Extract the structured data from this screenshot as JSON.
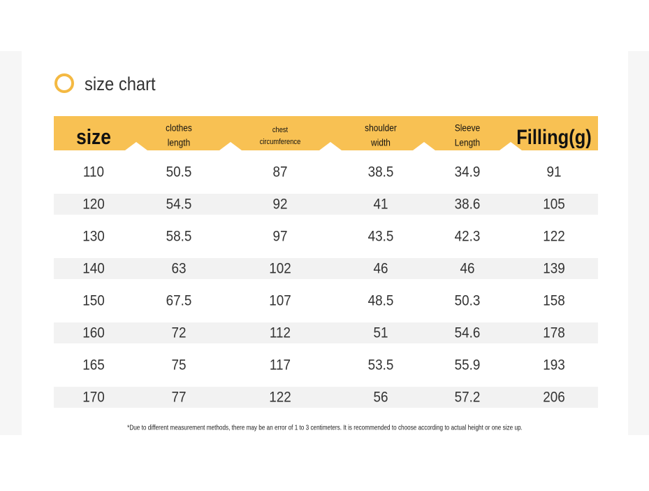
{
  "header": {
    "title": "size chart"
  },
  "table": {
    "columns": [
      [
        "size"
      ],
      [
        "clothes",
        "length"
      ],
      [
        "chest",
        "circumference"
      ],
      [
        "shoulder",
        "width"
      ],
      [
        "Sleeve",
        "Length"
      ],
      [
        "Filling(g)"
      ]
    ],
    "rows": [
      [
        110,
        50.5,
        87,
        38.5,
        34.9,
        91
      ],
      [
        120,
        54.5,
        92,
        41,
        38.6,
        105
      ],
      [
        130,
        58.5,
        97,
        43.5,
        42.3,
        122
      ],
      [
        140,
        63,
        102,
        46,
        46,
        139
      ],
      [
        150,
        67.5,
        107,
        48.5,
        50.3,
        158
      ],
      [
        160,
        72,
        112,
        51,
        54.6,
        178
      ],
      [
        165,
        75,
        117,
        53.5,
        55.9,
        193
      ],
      [
        170,
        77,
        122,
        56,
        57.2,
        206
      ]
    ]
  },
  "note": "*Due to different measurement methods, there may be an error of 1 to 3 centimeters. It is recommended to choose according to actual height or one size up."
}
